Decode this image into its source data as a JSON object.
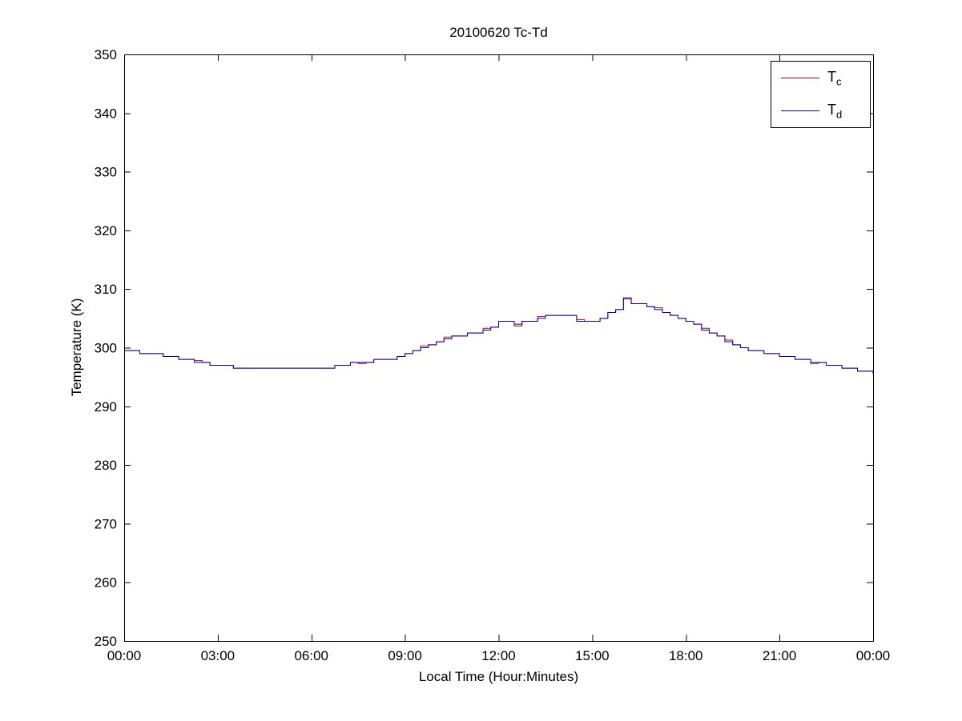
{
  "figure": {
    "background_color": "#ffffff",
    "axis_color": "#000000"
  },
  "chart_data": {
    "type": "line",
    "title": "20100620 Tc-Td",
    "xlabel": "Local Time (Hour:Minutes)",
    "ylabel": "Temperature (K)",
    "xlim": [
      0,
      24
    ],
    "ylim": [
      250,
      350
    ],
    "grid": false,
    "legend_position": "top-right",
    "interpolation": "step-after",
    "x_ticks": [
      0,
      3,
      6,
      9,
      12,
      15,
      18,
      21,
      24
    ],
    "x_tick_labels": [
      "00:00",
      "03:00",
      "06:00",
      "09:00",
      "12:00",
      "15:00",
      "18:00",
      "21:00",
      "00:00"
    ],
    "y_ticks": [
      250,
      260,
      270,
      280,
      290,
      300,
      310,
      320,
      330,
      340,
      350
    ],
    "y_tick_labels": [
      "250",
      "260",
      "270",
      "280",
      "290",
      "300",
      "310",
      "320",
      "330",
      "340",
      "350"
    ],
    "x_unit": "hours",
    "x": [
      0,
      0.25,
      0.5,
      0.75,
      1,
      1.25,
      1.5,
      1.75,
      2,
      2.25,
      2.5,
      2.75,
      3,
      3.25,
      3.5,
      3.75,
      4,
      4.25,
      4.5,
      4.75,
      5,
      5.25,
      5.5,
      5.75,
      6,
      6.25,
      6.5,
      6.75,
      7,
      7.25,
      7.5,
      7.75,
      8,
      8.25,
      8.5,
      8.75,
      9,
      9.25,
      9.5,
      9.75,
      10,
      10.25,
      10.5,
      10.75,
      11,
      11.25,
      11.5,
      11.75,
      12,
      12.25,
      12.5,
      12.75,
      13,
      13.25,
      13.5,
      13.75,
      14,
      14.25,
      14.5,
      14.75,
      15,
      15.25,
      15.5,
      15.75,
      16,
      16.25,
      16.5,
      16.75,
      17,
      17.25,
      17.5,
      17.75,
      18,
      18.25,
      18.5,
      18.75,
      19,
      19.25,
      19.5,
      19.75,
      20,
      20.25,
      20.5,
      20.75,
      21,
      21.25,
      21.5,
      21.75,
      22,
      22.25,
      22.5,
      22.75,
      23,
      23.25,
      23.5,
      23.75,
      24
    ],
    "series": [
      {
        "name_main": "T",
        "name_sub": "c",
        "color": "#cc0000",
        "values": [
          299.5,
          299.5,
          299,
          299,
          299,
          298.5,
          298.5,
          298,
          298,
          297.8,
          297.5,
          297,
          297,
          297,
          296.5,
          296.5,
          296.5,
          296.5,
          296.5,
          296.5,
          296.5,
          296.5,
          296.5,
          296.5,
          296.5,
          296.5,
          296.5,
          297,
          297,
          297.5,
          297.3,
          297.5,
          298,
          298,
          298,
          298.5,
          299,
          299.5,
          300.3,
          300.5,
          301,
          301.8,
          302,
          302,
          302.5,
          302.5,
          303.3,
          303.5,
          304.5,
          304.5,
          303.7,
          304.5,
          304.5,
          305.3,
          305.5,
          305.5,
          305.5,
          305.5,
          304.8,
          304.5,
          304.5,
          305,
          306,
          306.5,
          308.3,
          307.5,
          307.5,
          307,
          306.8,
          306,
          305.5,
          305,
          304.5,
          304,
          303.3,
          302.5,
          302,
          301.3,
          300.5,
          300,
          299.5,
          299.5,
          299,
          299,
          298.5,
          298.5,
          298,
          298,
          297.3,
          297.5,
          297,
          297,
          296.5,
          296.5,
          296,
          296,
          295.5
        ]
      },
      {
        "name_main": "T",
        "name_sub": "d",
        "color": "#0000cc",
        "values": [
          299.5,
          299.5,
          299,
          299,
          299,
          298.5,
          298.5,
          298,
          298,
          297.5,
          297.5,
          297,
          297,
          297,
          296.5,
          296.5,
          296.5,
          296.5,
          296.5,
          296.5,
          296.5,
          296.5,
          296.5,
          296.5,
          296.5,
          296.5,
          296.5,
          297,
          297,
          297.5,
          297.5,
          297.5,
          298,
          298,
          298,
          298.5,
          299,
          299.5,
          300,
          300.5,
          301,
          301.5,
          302,
          302,
          302.5,
          302.5,
          303,
          303.5,
          304.5,
          304.5,
          304,
          304.5,
          304.5,
          305,
          305.5,
          305.5,
          305.5,
          305.5,
          304.5,
          304.5,
          304.5,
          305,
          306,
          306.5,
          308.5,
          307.5,
          307.5,
          307,
          306.5,
          306,
          305.5,
          305,
          304.5,
          304,
          303,
          302.5,
          302,
          301,
          300.5,
          300,
          299.5,
          299.5,
          299,
          299,
          298.5,
          298.5,
          298,
          298,
          297.5,
          297.5,
          297,
          297,
          296.5,
          296.5,
          296,
          296,
          295.5
        ]
      }
    ]
  }
}
